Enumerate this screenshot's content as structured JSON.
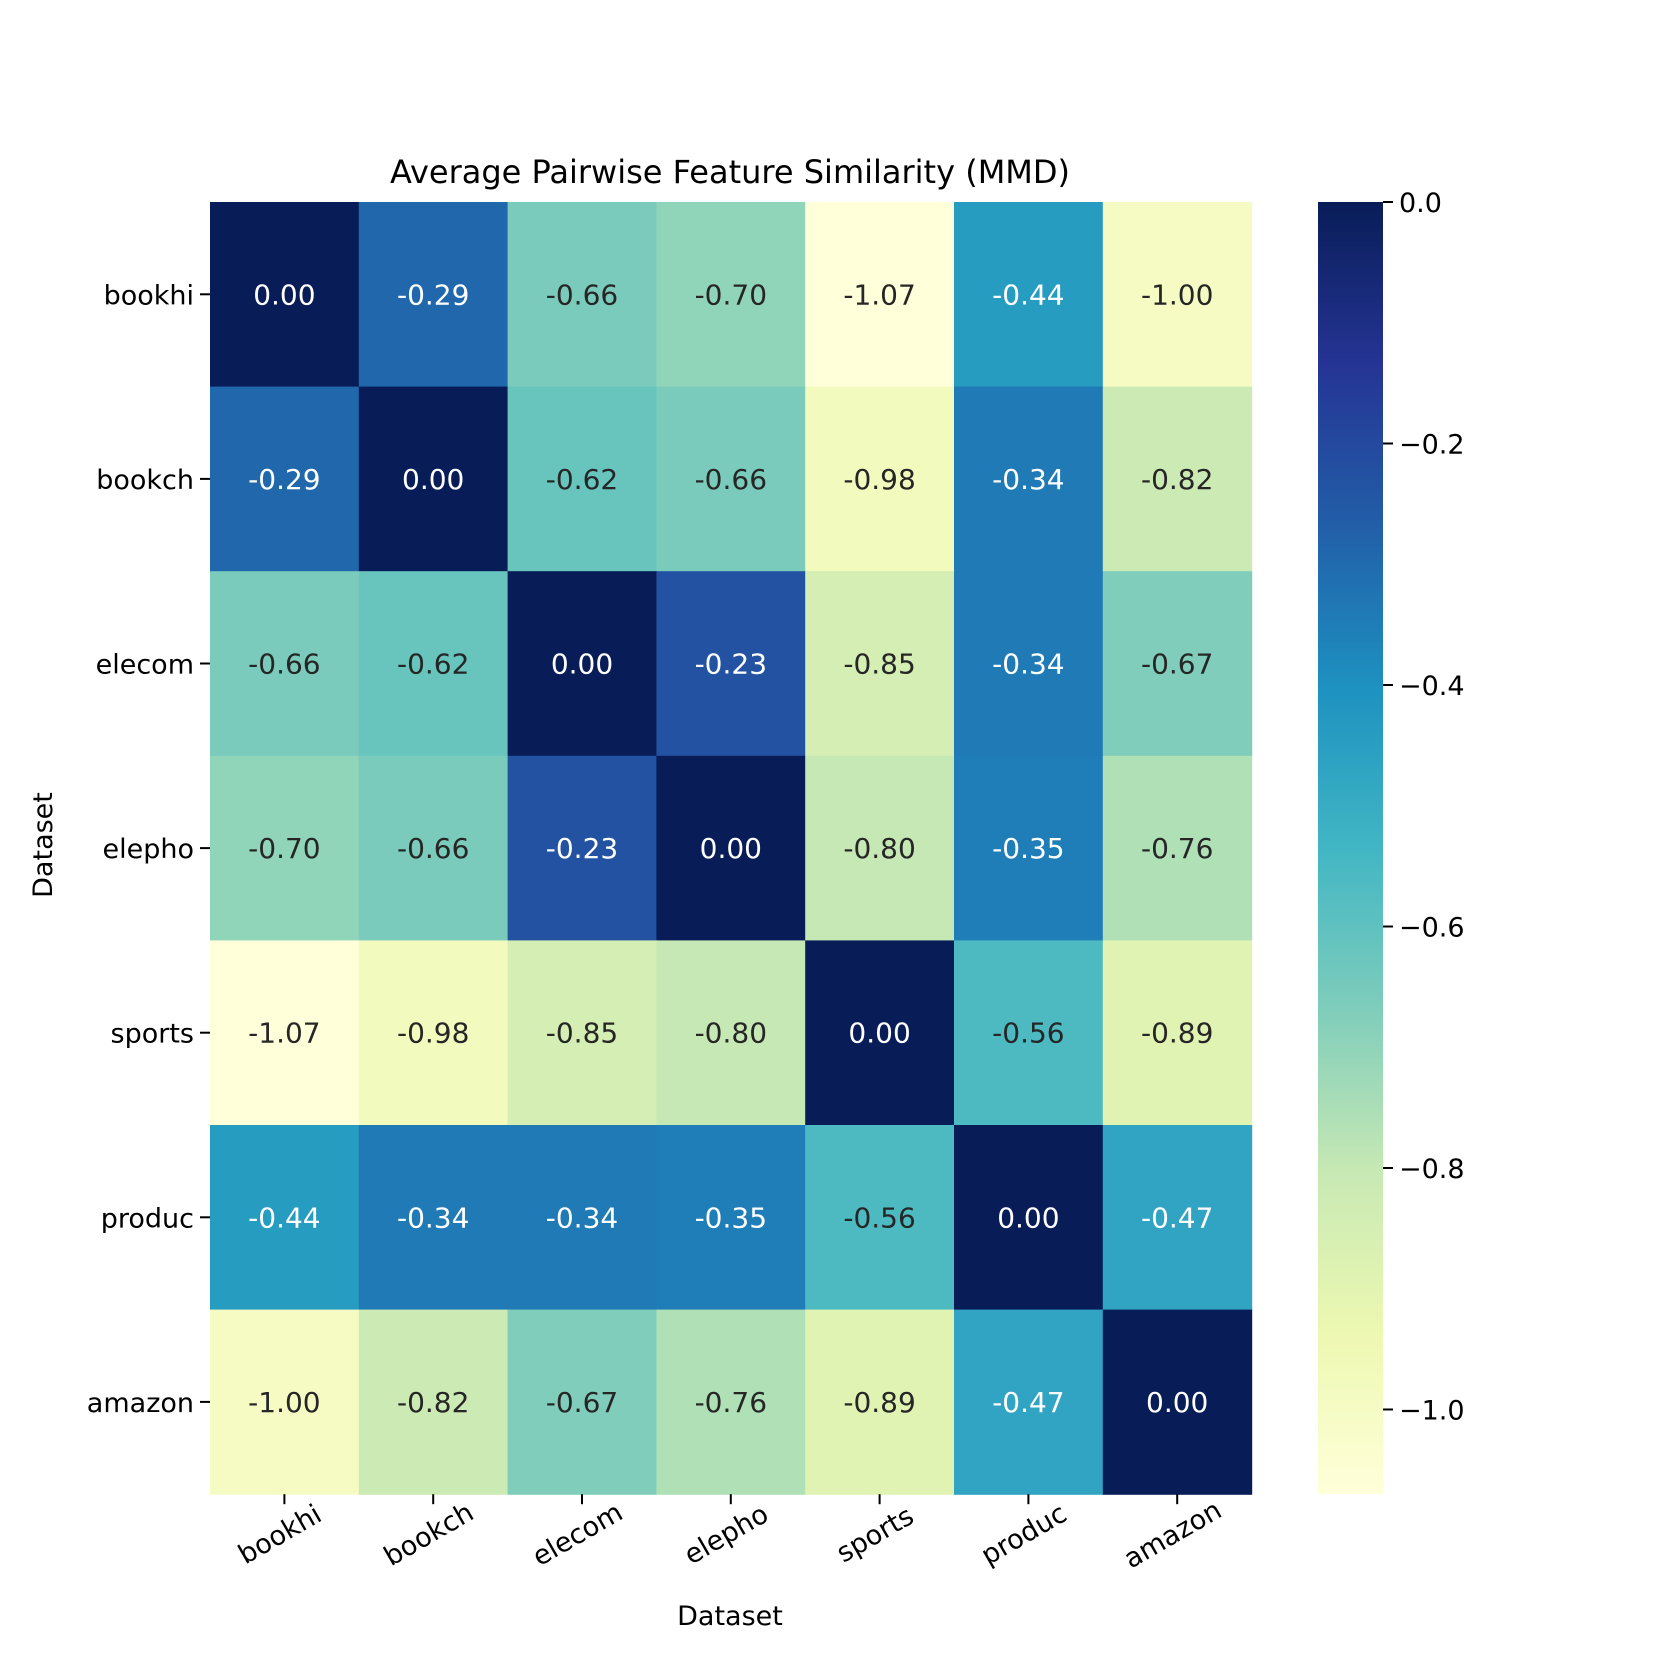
{
  "chart_data": {
    "type": "heatmap",
    "title": "Average Pairwise Feature Similarity (MMD)",
    "xlabel": "Dataset",
    "ylabel": "Dataset",
    "x_categories": [
      "bookhi",
      "bookch",
      "elecom",
      "elepho",
      "sports",
      "produc",
      "amazon"
    ],
    "y_categories": [
      "bookhi",
      "bookch",
      "elecom",
      "elepho",
      "sports",
      "produc",
      "amazon"
    ],
    "matrix": [
      [
        0.0,
        -0.29,
        -0.66,
        -0.7,
        -1.07,
        -0.44,
        -1.0
      ],
      [
        -0.29,
        0.0,
        -0.62,
        -0.66,
        -0.98,
        -0.34,
        -0.82
      ],
      [
        -0.66,
        -0.62,
        0.0,
        -0.23,
        -0.85,
        -0.34,
        -0.67
      ],
      [
        -0.7,
        -0.66,
        -0.23,
        0.0,
        -0.8,
        -0.35,
        -0.76
      ],
      [
        -1.07,
        -0.98,
        -0.85,
        -0.8,
        0.0,
        -0.56,
        -0.89
      ],
      [
        -0.44,
        -0.34,
        -0.34,
        -0.35,
        -0.56,
        0.0,
        -0.47
      ],
      [
        -1.0,
        -0.82,
        -0.67,
        -0.76,
        -0.89,
        -0.47,
        0.0
      ]
    ],
    "colormap": "YlGnBu",
    "value_range": [
      -1.07,
      0.0
    ],
    "colorbar_ticks": [
      0.0,
      -0.2,
      -0.4,
      -0.6,
      -0.8,
      -1.0
    ],
    "colorbar_tick_labels": [
      "0.0",
      "−0.2",
      "−0.4",
      "−0.6",
      "−0.8",
      "−1.0"
    ],
    "annotation_format": "2 decimals"
  }
}
